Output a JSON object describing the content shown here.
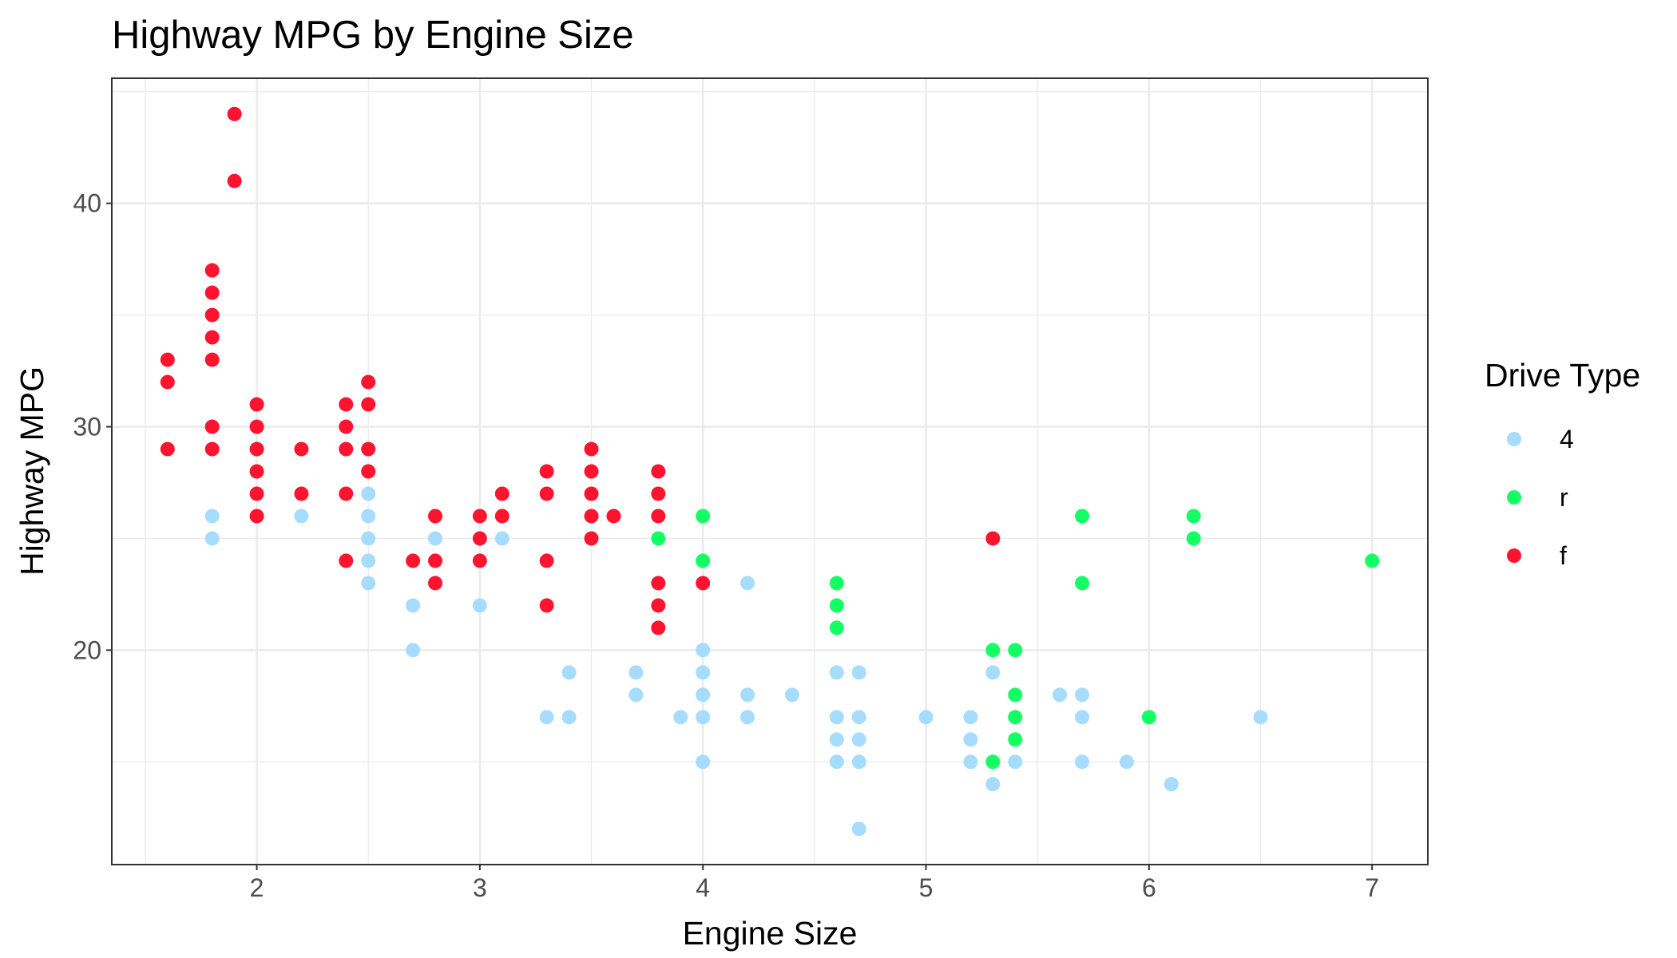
{
  "chart_data": {
    "type": "scatter",
    "title": "Highway MPG by Engine Size",
    "xlabel": "Engine Size",
    "ylabel": "Highway MPG",
    "xlim": [
      1.35,
      7.25
    ],
    "ylim": [
      10.4,
      45.6
    ],
    "x_ticks": [
      2,
      3,
      4,
      5,
      6,
      7
    ],
    "y_ticks": [
      20,
      30,
      40
    ],
    "grid": true,
    "legend": {
      "title": "Drive Type",
      "position": "right"
    },
    "series": [
      {
        "name": "4",
        "color": "#a6dcff",
        "points": [
          [
            1.8,
            26
          ],
          [
            1.8,
            25
          ],
          [
            2.2,
            26
          ],
          [
            2.5,
            27
          ],
          [
            2.5,
            26
          ],
          [
            2.5,
            25
          ],
          [
            2.5,
            24
          ],
          [
            2.5,
            23
          ],
          [
            2.7,
            22
          ],
          [
            2.7,
            20
          ],
          [
            2.8,
            25
          ],
          [
            3.0,
            22
          ],
          [
            3.1,
            25
          ],
          [
            3.3,
            17
          ],
          [
            3.4,
            19
          ],
          [
            3.4,
            17
          ],
          [
            3.7,
            19
          ],
          [
            3.7,
            18
          ],
          [
            3.9,
            17
          ],
          [
            4.0,
            20
          ],
          [
            4.0,
            19
          ],
          [
            4.0,
            18
          ],
          [
            4.0,
            17
          ],
          [
            4.0,
            15
          ],
          [
            4.2,
            23
          ],
          [
            4.2,
            18
          ],
          [
            4.2,
            17
          ],
          [
            4.4,
            18
          ],
          [
            4.6,
            19
          ],
          [
            4.6,
            17
          ],
          [
            4.6,
            16
          ],
          [
            4.6,
            15
          ],
          [
            4.7,
            19
          ],
          [
            4.7,
            17
          ],
          [
            4.7,
            16
          ],
          [
            4.7,
            15
          ],
          [
            4.7,
            12
          ],
          [
            5.0,
            17
          ],
          [
            5.2,
            17
          ],
          [
            5.2,
            16
          ],
          [
            5.2,
            15
          ],
          [
            5.3,
            19
          ],
          [
            5.3,
            14
          ],
          [
            5.4,
            15
          ],
          [
            5.6,
            18
          ],
          [
            5.7,
            18
          ],
          [
            5.7,
            17
          ],
          [
            5.7,
            15
          ],
          [
            5.9,
            15
          ],
          [
            6.1,
            14
          ],
          [
            6.5,
            17
          ]
        ]
      },
      {
        "name": "r",
        "color": "#14ff64",
        "points": [
          [
            3.8,
            25
          ],
          [
            4.0,
            26
          ],
          [
            4.0,
            24
          ],
          [
            4.6,
            23
          ],
          [
            4.6,
            22
          ],
          [
            4.6,
            21
          ],
          [
            5.3,
            20
          ],
          [
            5.3,
            15
          ],
          [
            5.4,
            20
          ],
          [
            5.4,
            18
          ],
          [
            5.4,
            17
          ],
          [
            5.4,
            16
          ],
          [
            5.7,
            26
          ],
          [
            5.7,
            23
          ],
          [
            6.0,
            17
          ],
          [
            6.2,
            26
          ],
          [
            6.2,
            25
          ],
          [
            7.0,
            24
          ]
        ]
      },
      {
        "name": "f",
        "color": "#ff1430",
        "points": [
          [
            1.6,
            33
          ],
          [
            1.6,
            32
          ],
          [
            1.6,
            29
          ],
          [
            1.8,
            37
          ],
          [
            1.8,
            36
          ],
          [
            1.8,
            35
          ],
          [
            1.8,
            34
          ],
          [
            1.8,
            33
          ],
          [
            1.8,
            30
          ],
          [
            1.8,
            29
          ],
          [
            1.9,
            44
          ],
          [
            1.9,
            41
          ],
          [
            2.0,
            31
          ],
          [
            2.0,
            30
          ],
          [
            2.0,
            29
          ],
          [
            2.0,
            28
          ],
          [
            2.0,
            27
          ],
          [
            2.0,
            26
          ],
          [
            2.2,
            29
          ],
          [
            2.2,
            27
          ],
          [
            2.4,
            31
          ],
          [
            2.4,
            30
          ],
          [
            2.4,
            29
          ],
          [
            2.4,
            27
          ],
          [
            2.4,
            24
          ],
          [
            2.5,
            32
          ],
          [
            2.5,
            31
          ],
          [
            2.5,
            29
          ],
          [
            2.5,
            28
          ],
          [
            2.7,
            24
          ],
          [
            2.8,
            26
          ],
          [
            2.8,
            24
          ],
          [
            2.8,
            23
          ],
          [
            3.0,
            26
          ],
          [
            3.0,
            25
          ],
          [
            3.0,
            24
          ],
          [
            3.1,
            27
          ],
          [
            3.1,
            26
          ],
          [
            3.3,
            28
          ],
          [
            3.3,
            27
          ],
          [
            3.3,
            24
          ],
          [
            3.3,
            22
          ],
          [
            3.5,
            29
          ],
          [
            3.5,
            28
          ],
          [
            3.5,
            27
          ],
          [
            3.5,
            26
          ],
          [
            3.5,
            25
          ],
          [
            3.6,
            26
          ],
          [
            3.8,
            28
          ],
          [
            3.8,
            27
          ],
          [
            3.8,
            26
          ],
          [
            3.8,
            23
          ],
          [
            3.8,
            22
          ],
          [
            3.8,
            21
          ],
          [
            4.0,
            23
          ],
          [
            5.3,
            25
          ]
        ]
      }
    ]
  }
}
